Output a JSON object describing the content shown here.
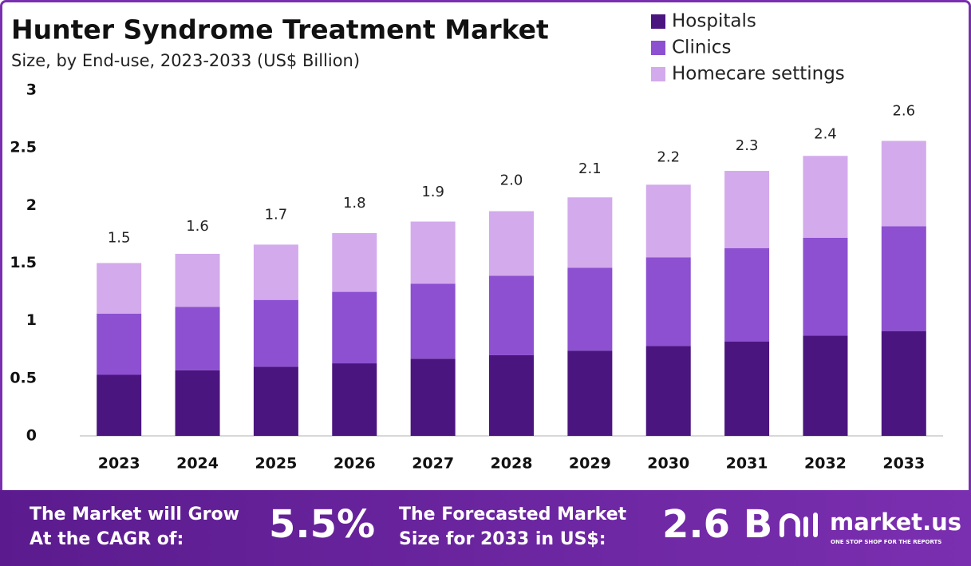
{
  "chart_data": {
    "type": "stacked-bar",
    "title": "Hunter Syndrome Treatment Market",
    "subtitle": "Size, by End-use, 2023-2033 (US$ Billion)",
    "categories": [
      "2023",
      "2024",
      "2025",
      "2026",
      "2027",
      "2028",
      "2029",
      "2030",
      "2031",
      "2032",
      "2033"
    ],
    "series": [
      {
        "name": "Hospitals",
        "color": "#4b1580",
        "values": [
          0.53,
          0.57,
          0.6,
          0.63,
          0.67,
          0.7,
          0.74,
          0.78,
          0.82,
          0.87,
          0.91
        ]
      },
      {
        "name": "Clinics",
        "color": "#8c50d0",
        "values": [
          0.53,
          0.55,
          0.58,
          0.62,
          0.65,
          0.69,
          0.72,
          0.77,
          0.81,
          0.85,
          0.91
        ]
      },
      {
        "name": "Homecare settings",
        "color": "#d3aaec",
        "values": [
          0.44,
          0.46,
          0.48,
          0.51,
          0.54,
          0.56,
          0.61,
          0.63,
          0.67,
          0.71,
          0.74
        ]
      }
    ],
    "totals": {
      "values": [
        1.5,
        1.6,
        1.7,
        1.8,
        1.9,
        2.0,
        2.1,
        2.2,
        2.3,
        2.4,
        2.6
      ],
      "value_labels": [
        "1.5",
        "1.6",
        "1.7",
        "1.8",
        "1.9",
        "2.0",
        "2.1",
        "2.2",
        "2.3",
        "2.4",
        "2.6"
      ]
    },
    "ylim": [
      0,
      3
    ],
    "yticks": [
      0,
      0.5,
      1,
      1.5,
      2,
      2.5,
      3
    ],
    "grid": false,
    "legend": "top-right"
  },
  "footer": {
    "cagr_text": [
      "The Market will Grow",
      "At the CAGR of:"
    ],
    "cagr_value": "5.5%",
    "forecast_text": [
      "The Forecasted Market",
      "Size for 2033 in US$:"
    ],
    "forecast_value": "2.6 B",
    "brand": "market.us",
    "tagline": "ONE STOP SHOP FOR THE REPORTS"
  }
}
